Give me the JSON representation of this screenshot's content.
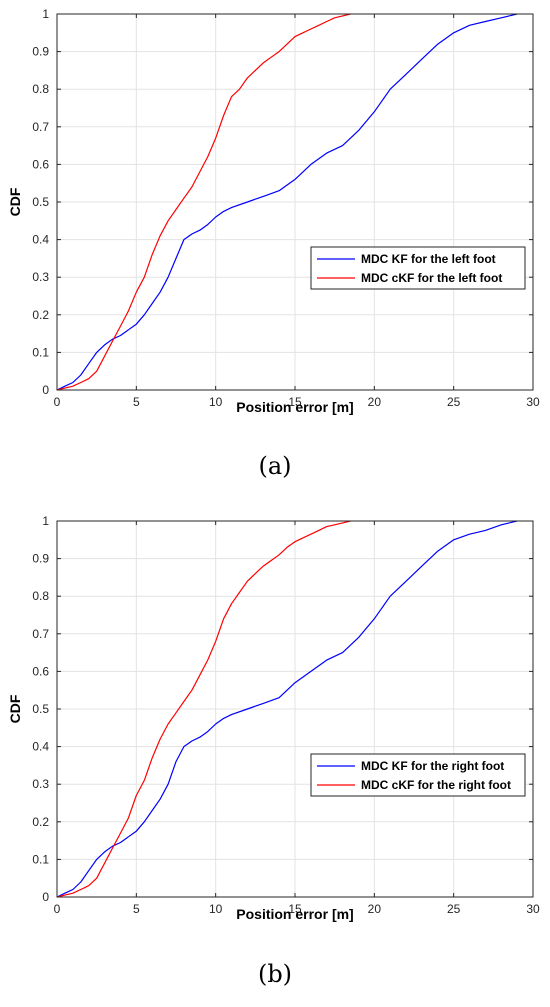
{
  "chart_data": [
    {
      "type": "line",
      "panel_label": "(a)",
      "xlabel": "Position error [m]",
      "ylabel": "CDF",
      "xlim": [
        0,
        30
      ],
      "ylim": [
        0,
        1
      ],
      "xticks": [
        "0",
        "5",
        "10",
        "15",
        "20",
        "25",
        "30"
      ],
      "yticks": [
        "0",
        "0.1",
        "0.2",
        "0.3",
        "0.4",
        "0.5",
        "0.6",
        "0.7",
        "0.8",
        "0.9",
        "1"
      ],
      "grid": true,
      "legend_position": "middle-right",
      "series": [
        {
          "name": "MDC KF for the left foot",
          "color": "#0000ff",
          "x": [
            0,
            0.5,
            1.0,
            1.5,
            2.0,
            2.5,
            3.0,
            3.5,
            4.0,
            4.5,
            5.0,
            5.5,
            6.0,
            6.5,
            7.0,
            7.5,
            8.0,
            8.5,
            9.0,
            9.5,
            10.0,
            10.5,
            11.0,
            12.0,
            13.0,
            14.0,
            15.0,
            16.0,
            17.0,
            18.0,
            19.0,
            20.0,
            21.0,
            22.0,
            23.0,
            24.0,
            25.0,
            26.0,
            27.0,
            28.0,
            29.0
          ],
          "y": [
            0,
            0.01,
            0.02,
            0.04,
            0.07,
            0.1,
            0.12,
            0.135,
            0.145,
            0.16,
            0.175,
            0.2,
            0.23,
            0.26,
            0.3,
            0.35,
            0.4,
            0.415,
            0.425,
            0.44,
            0.46,
            0.475,
            0.485,
            0.5,
            0.515,
            0.53,
            0.56,
            0.6,
            0.63,
            0.65,
            0.69,
            0.74,
            0.8,
            0.84,
            0.88,
            0.92,
            0.95,
            0.97,
            0.98,
            0.99,
            1.0
          ]
        },
        {
          "name": "MDC cKF for the left foot",
          "color": "#ff0000",
          "x": [
            0,
            0.5,
            1.0,
            1.5,
            2.0,
            2.5,
            3.0,
            3.5,
            4.0,
            4.5,
            5.0,
            5.5,
            6.0,
            6.5,
            7.0,
            7.5,
            8.0,
            8.5,
            9.0,
            9.5,
            10.0,
            10.5,
            11.0,
            11.5,
            12.0,
            12.5,
            13.0,
            13.5,
            14.0,
            14.5,
            15.0,
            15.5,
            16.0,
            16.5,
            17.0,
            17.5,
            18.0,
            18.5
          ],
          "y": [
            0,
            0.005,
            0.01,
            0.02,
            0.03,
            0.05,
            0.09,
            0.13,
            0.17,
            0.21,
            0.26,
            0.3,
            0.36,
            0.41,
            0.45,
            0.48,
            0.51,
            0.54,
            0.58,
            0.62,
            0.67,
            0.73,
            0.78,
            0.8,
            0.83,
            0.85,
            0.87,
            0.885,
            0.9,
            0.92,
            0.94,
            0.95,
            0.96,
            0.97,
            0.98,
            0.99,
            0.995,
            1.0
          ]
        }
      ]
    },
    {
      "type": "line",
      "panel_label": "(b)",
      "xlabel": "Position error [m]",
      "ylabel": "CDF",
      "xlim": [
        0,
        30
      ],
      "ylim": [
        0,
        1
      ],
      "xticks": [
        "0",
        "5",
        "10",
        "15",
        "20",
        "25",
        "30"
      ],
      "yticks": [
        "0",
        "0.1",
        "0.2",
        "0.3",
        "0.4",
        "0.5",
        "0.6",
        "0.7",
        "0.8",
        "0.9",
        "1"
      ],
      "grid": true,
      "legend_position": "middle-right",
      "series": [
        {
          "name": "MDC KF for the right foot",
          "color": "#0000ff",
          "x": [
            0,
            0.5,
            1.0,
            1.5,
            2.0,
            2.5,
            3.0,
            3.5,
            4.0,
            4.5,
            5.0,
            5.5,
            6.0,
            6.5,
            7.0,
            7.5,
            8.0,
            8.5,
            9.0,
            9.5,
            10.0,
            10.5,
            11.0,
            12.0,
            13.0,
            14.0,
            15.0,
            16.0,
            17.0,
            18.0,
            19.0,
            20.0,
            21.0,
            22.0,
            23.0,
            24.0,
            25.0,
            26.0,
            27.0,
            28.0,
            29.0
          ],
          "y": [
            0,
            0.01,
            0.02,
            0.04,
            0.07,
            0.1,
            0.12,
            0.135,
            0.145,
            0.16,
            0.175,
            0.2,
            0.23,
            0.26,
            0.3,
            0.36,
            0.4,
            0.415,
            0.425,
            0.44,
            0.46,
            0.475,
            0.485,
            0.5,
            0.515,
            0.53,
            0.57,
            0.6,
            0.63,
            0.65,
            0.69,
            0.74,
            0.8,
            0.84,
            0.88,
            0.92,
            0.95,
            0.965,
            0.975,
            0.99,
            1.0
          ]
        },
        {
          "name": "MDC cKF for the right foot",
          "color": "#ff0000",
          "x": [
            0,
            0.5,
            1.0,
            1.5,
            2.0,
            2.5,
            3.0,
            3.5,
            4.0,
            4.5,
            5.0,
            5.5,
            6.0,
            6.5,
            7.0,
            7.5,
            8.0,
            8.5,
            9.0,
            9.5,
            10.0,
            10.5,
            11.0,
            11.5,
            12.0,
            12.5,
            13.0,
            13.5,
            14.0,
            14.5,
            15.0,
            15.5,
            16.0,
            16.5,
            17.0,
            17.5,
            18.0,
            18.5
          ],
          "y": [
            0,
            0.005,
            0.01,
            0.02,
            0.03,
            0.05,
            0.09,
            0.13,
            0.17,
            0.21,
            0.27,
            0.31,
            0.37,
            0.42,
            0.46,
            0.49,
            0.52,
            0.55,
            0.59,
            0.63,
            0.68,
            0.74,
            0.78,
            0.81,
            0.84,
            0.86,
            0.88,
            0.895,
            0.91,
            0.93,
            0.945,
            0.955,
            0.965,
            0.975,
            0.985,
            0.99,
            0.995,
            1.0
          ]
        }
      ]
    }
  ]
}
